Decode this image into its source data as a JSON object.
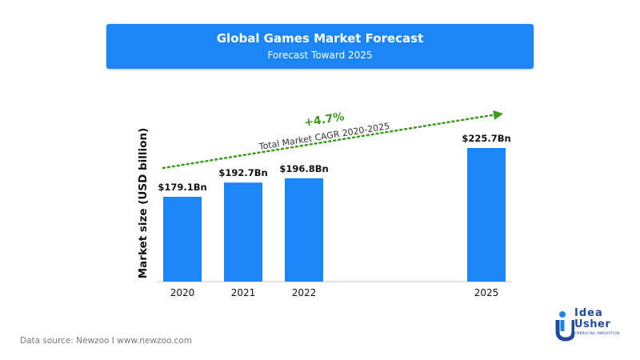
{
  "header": {
    "title": "Global Games Market Forecast",
    "subtitle": "Forecast Toward 2025"
  },
  "chart_data": {
    "type": "bar",
    "categories": [
      "2020",
      "2021",
      "2022",
      "2025"
    ],
    "values": [
      179.1,
      192.7,
      196.8,
      225.7
    ],
    "value_labels": [
      "$179.1Bn",
      "$192.7Bn",
      "$196.8Bn",
      "$225.7Bn"
    ],
    "ylabel": "Market size (USD billion)",
    "xlabel": "",
    "bar_color": "#1d86f6",
    "axis_hidden": true,
    "annotation": {
      "value": "+4.7%",
      "label": "Total Market CAGR 2020-2025",
      "color": "#3a9a1a",
      "style": "dotted-arrow"
    }
  },
  "footer": {
    "source": "Data source: Newzoo I www.newzoo.com"
  },
  "logo": {
    "line1": "Idea",
    "line2": "Usher",
    "tagline": "EMBRACING INNOVATION"
  },
  "colors": {
    "accent": "#1d86f6",
    "trend": "#3a9a1a",
    "logo": "#1f4aa0"
  }
}
